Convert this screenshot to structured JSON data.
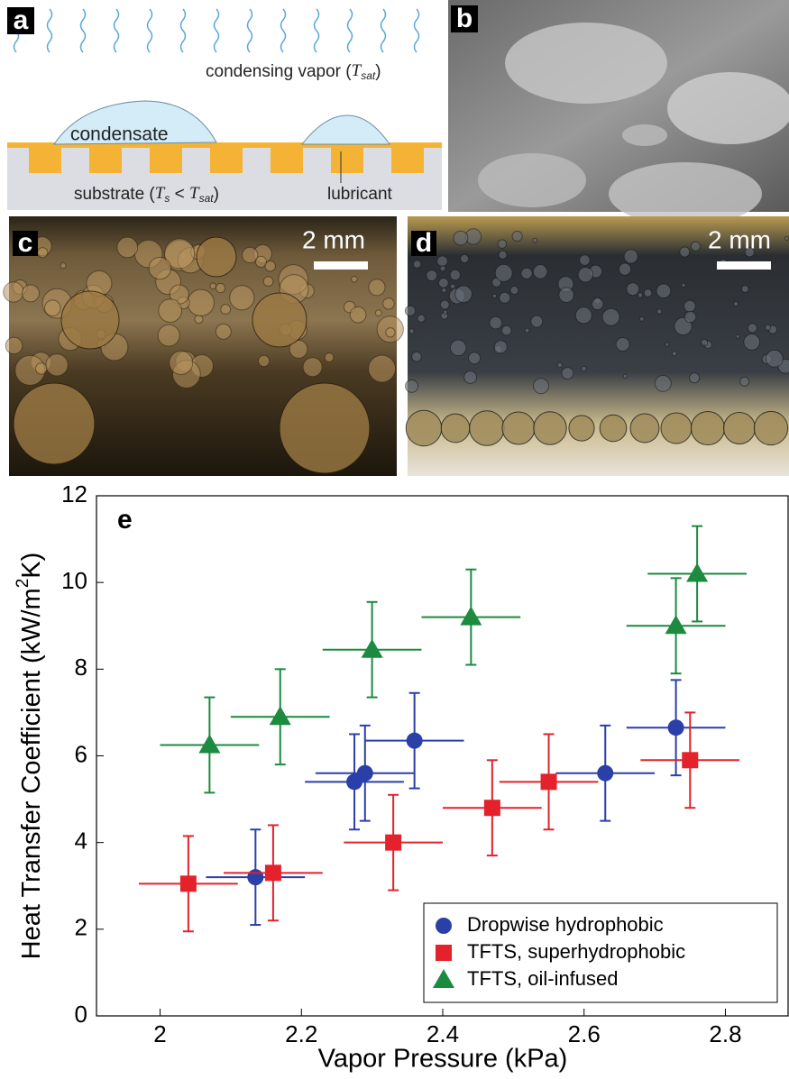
{
  "panels": {
    "a": {
      "label": "a",
      "vapor": [
        "condensing vapor (",
        "T",
        "sat",
        ")"
      ],
      "condensate": "condensate",
      "substrate": [
        "substrate (",
        "T",
        "s",
        " < ",
        "T",
        "sat",
        ")"
      ],
      "lubricant": "lubricant"
    },
    "b": {
      "label": "b"
    },
    "c": {
      "label": "c",
      "scale": "2 mm"
    },
    "d": {
      "label": "d",
      "scale": "2 mm"
    }
  },
  "chart_data": {
    "type": "scatter",
    "panel_label": "e",
    "x_label": "Vapor Pressure (kPa)",
    "y_label": [
      "Heat Transfer Coefficient (kW/m",
      "2",
      "K)"
    ],
    "xlim": [
      1.91,
      2.89
    ],
    "ylim": [
      0,
      12
    ],
    "xticks": [
      2,
      2.2,
      2.4,
      2.6,
      2.8
    ],
    "yticks": [
      0,
      2,
      4,
      6,
      8,
      10,
      12
    ],
    "legend": "lower right",
    "series": [
      {
        "name": "Dropwise hydrophobic",
        "color": "#2b3fa8",
        "marker": "circle",
        "x": [
          2.135,
          2.275,
          2.29,
          2.36,
          2.63,
          2.73
        ],
        "values": [
          3.2,
          5.4,
          5.6,
          6.35,
          5.6,
          6.65
        ],
        "xerr": [
          0.07,
          0.07,
          0.07,
          0.07,
          0.07,
          0.07
        ],
        "yerr": [
          1.1,
          1.1,
          1.1,
          1.1,
          1.1,
          1.1
        ]
      },
      {
        "name": "TFTS, superhydrophobic",
        "color": "#e3222b",
        "marker": "square",
        "x": [
          2.04,
          2.16,
          2.33,
          2.47,
          2.55,
          2.75
        ],
        "values": [
          3.05,
          3.3,
          4.0,
          4.8,
          5.4,
          5.9
        ],
        "xerr": [
          0.07,
          0.07,
          0.07,
          0.07,
          0.07,
          0.07
        ],
        "yerr": [
          1.1,
          1.1,
          1.1,
          1.1,
          1.1,
          1.1
        ]
      },
      {
        "name": "TFTS, oil-infused",
        "color": "#1c8a3f",
        "marker": "triangle",
        "x": [
          2.07,
          2.17,
          2.3,
          2.44,
          2.73,
          2.76
        ],
        "values": [
          6.25,
          6.9,
          8.45,
          9.2,
          9.0,
          10.2
        ],
        "xerr": [
          0.07,
          0.07,
          0.07,
          0.07,
          0.07,
          0.07
        ],
        "yerr": [
          1.1,
          1.1,
          1.1,
          1.1,
          1.1,
          1.1
        ]
      }
    ]
  }
}
